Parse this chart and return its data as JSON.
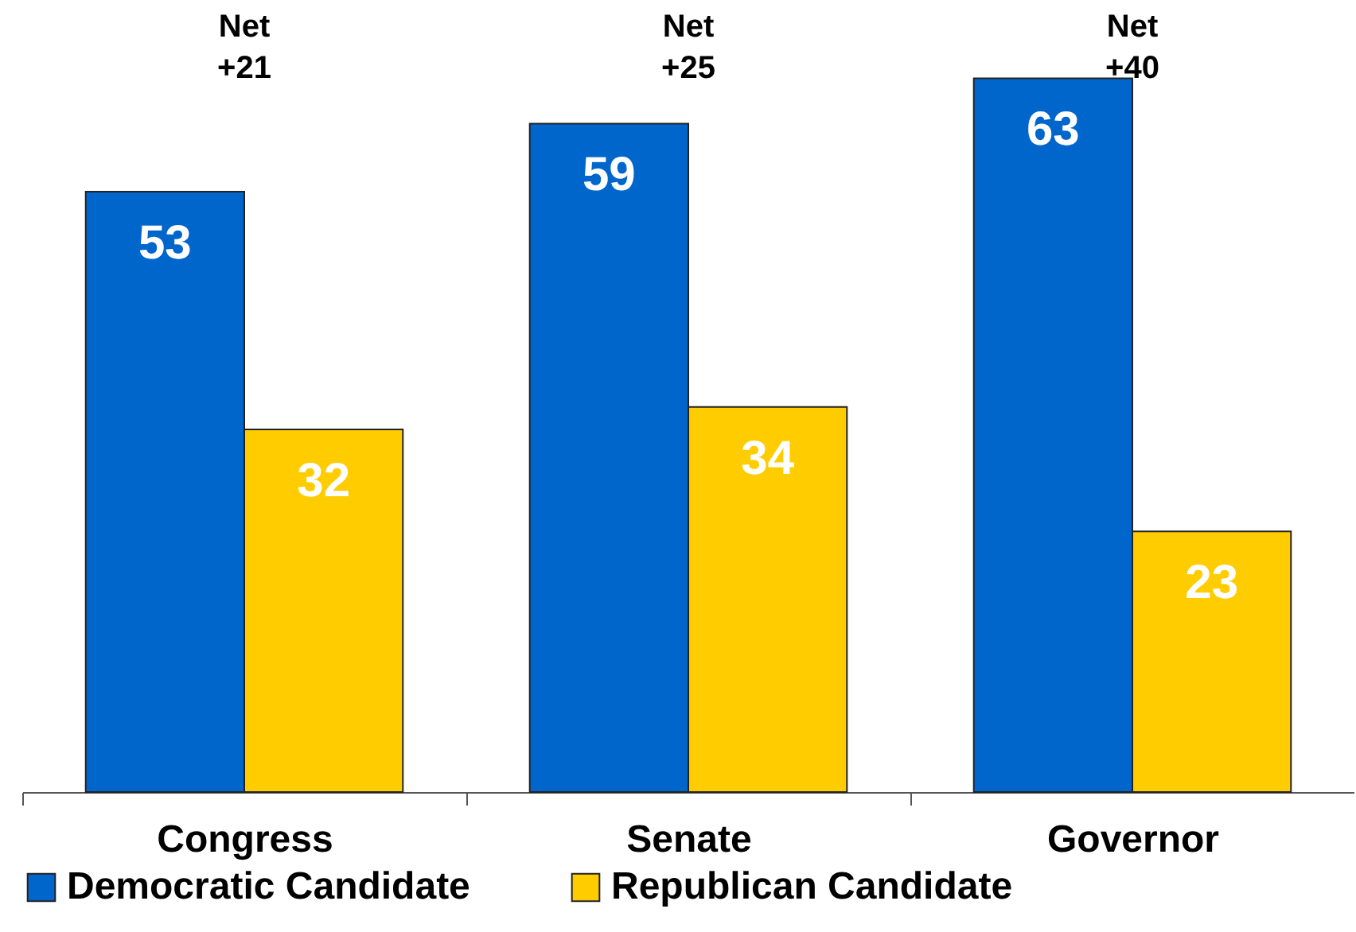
{
  "chart_data": {
    "type": "bar",
    "categories": [
      "Congress",
      "Senate",
      "Governor"
    ],
    "series": [
      {
        "name": "Democratic Candidate",
        "color": "#0066cc",
        "values": [
          53,
          59,
          63
        ]
      },
      {
        "name": "Republican Candidate",
        "color": "#ffcc00",
        "values": [
          32,
          34,
          23
        ]
      }
    ],
    "data_labels": true,
    "legend": "bottom",
    "grid": false,
    "annotations": [
      "Net +21",
      "Net +25",
      "Net +40"
    ]
  }
}
